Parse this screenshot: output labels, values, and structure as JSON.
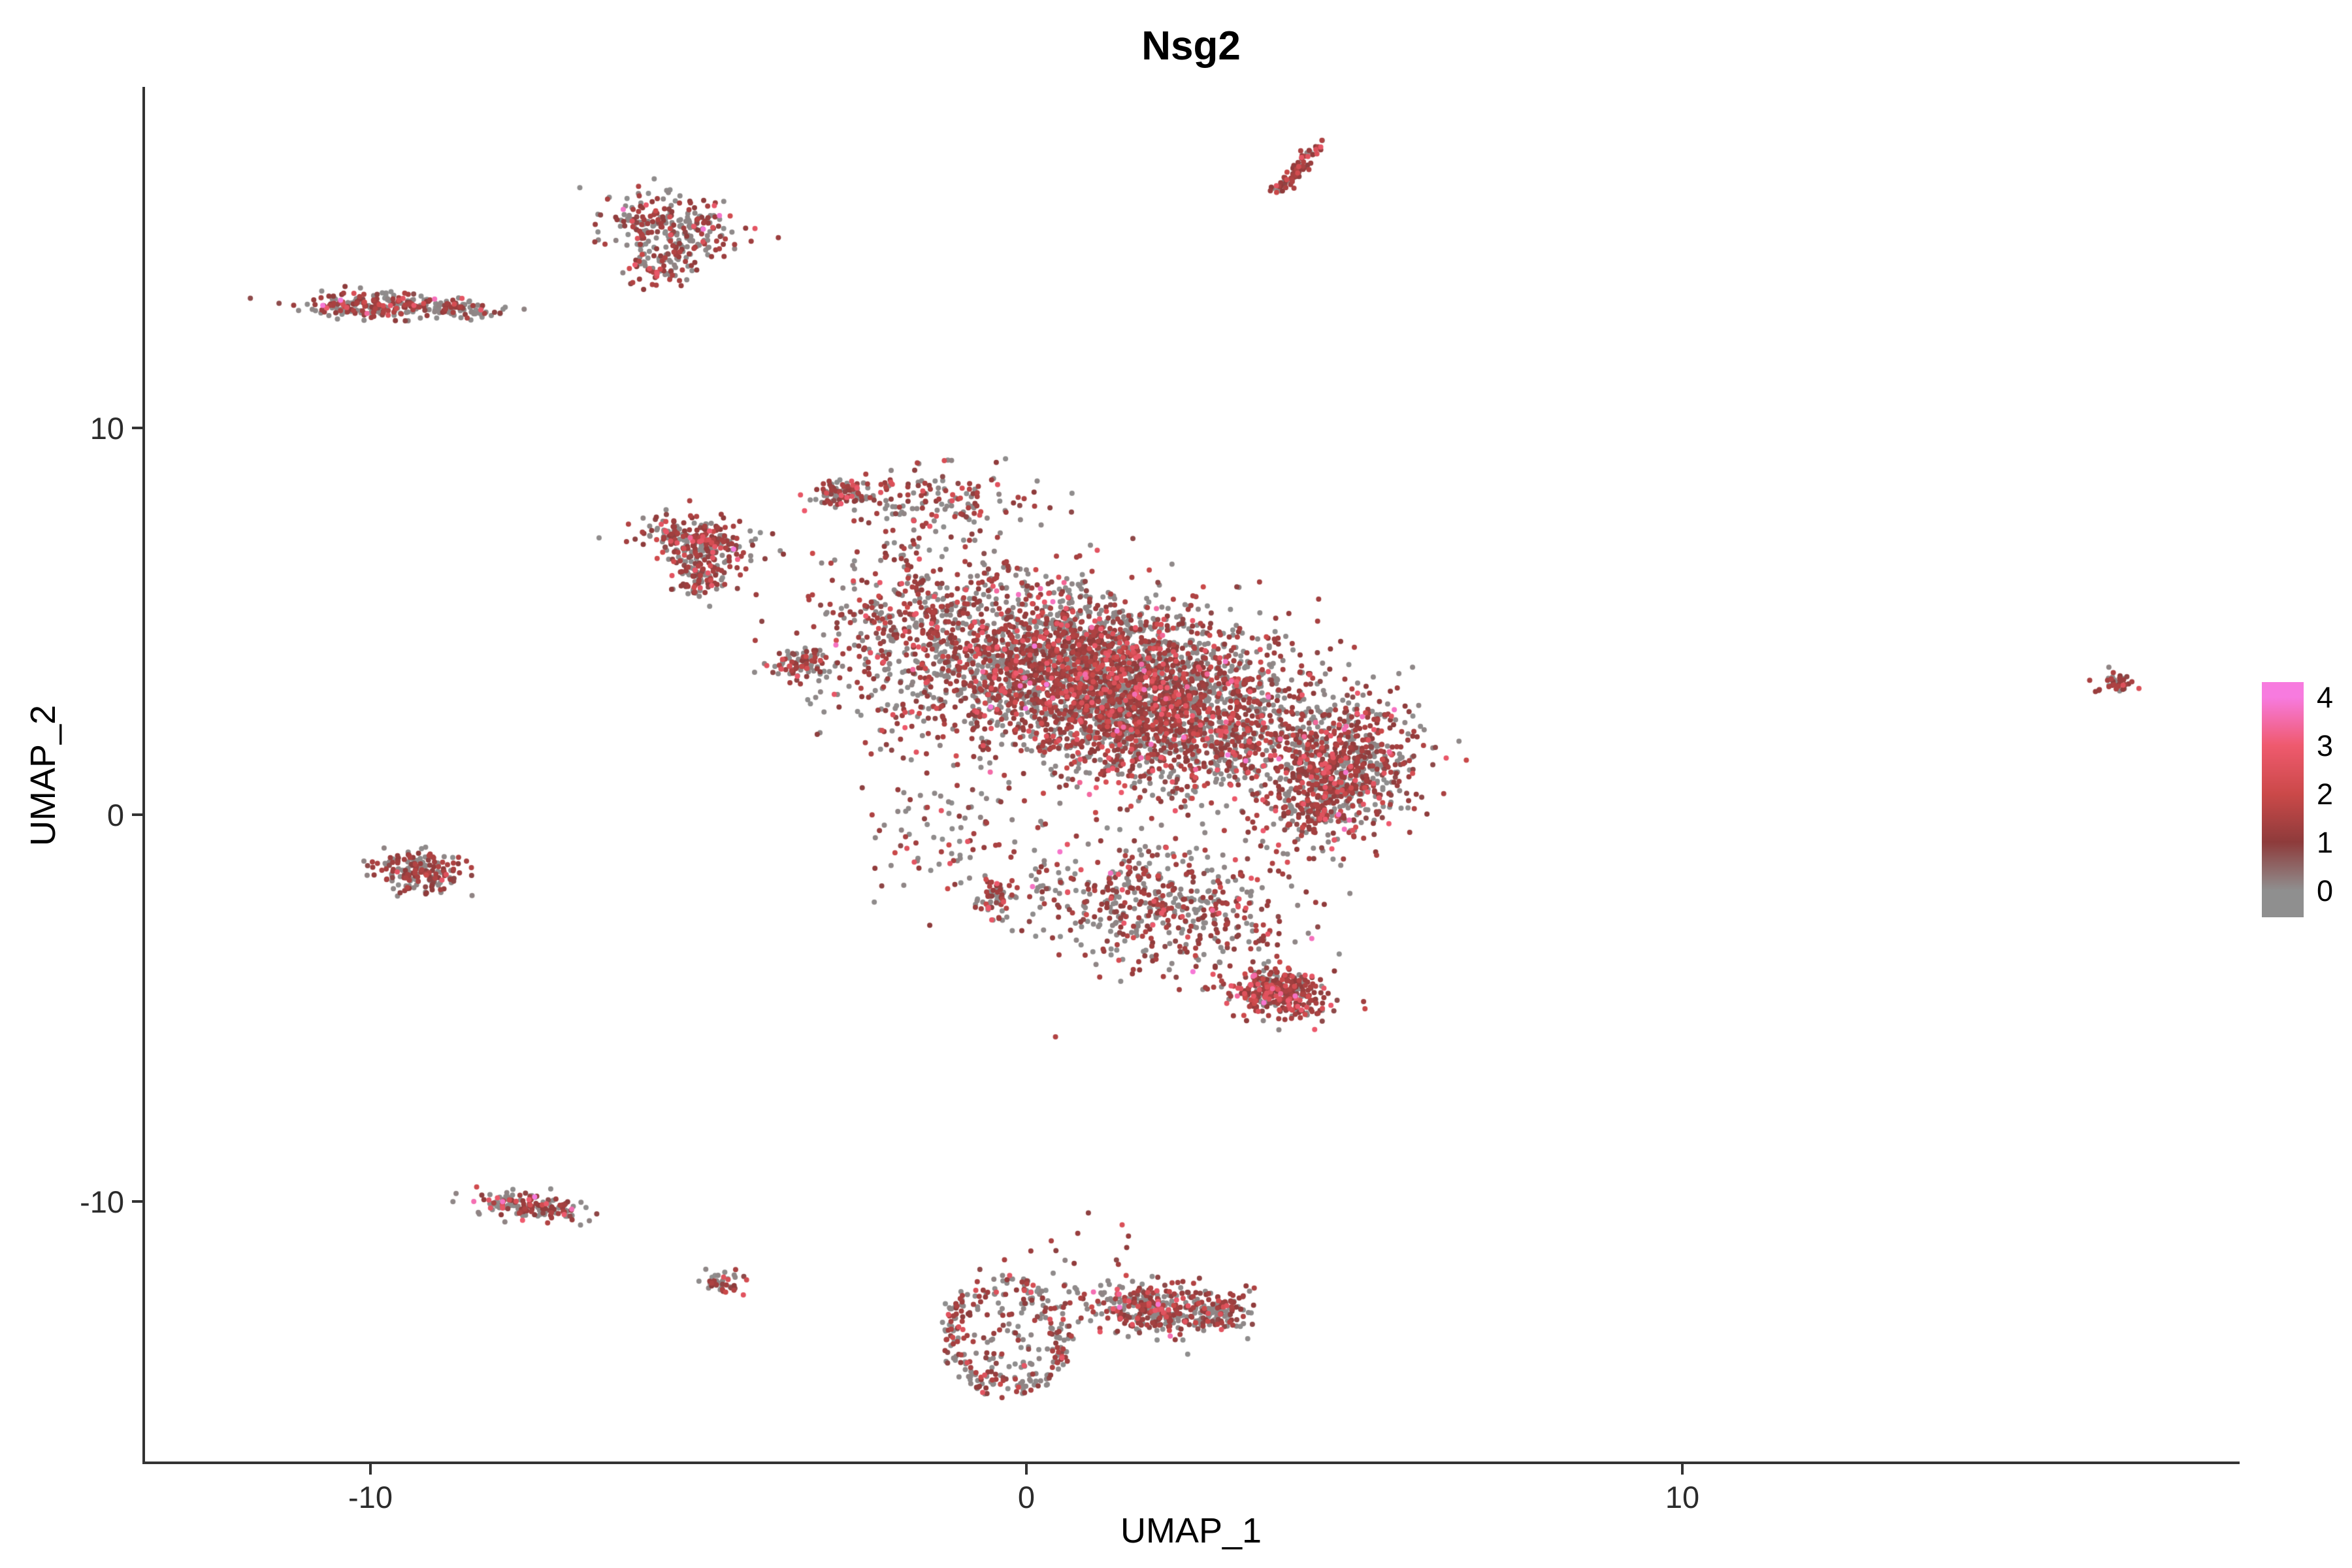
{
  "title": "Nsg2",
  "axes": {
    "x_label": "UMAP_1",
    "y_label": "UMAP_2",
    "x_ticks": [
      {
        "label": "-10",
        "value": -10
      },
      {
        "label": "0",
        "value": 0
      },
      {
        "label": "10",
        "value": 10
      }
    ],
    "y_ticks": [
      {
        "label": "10",
        "value": 10
      },
      {
        "label": "0",
        "value": 0
      },
      {
        "label": "-10",
        "value": -10
      }
    ]
  },
  "legend": {
    "labels": [
      "4",
      "3",
      "2",
      "1",
      "0"
    ]
  },
  "chart_data": {
    "type": "scatter",
    "title": "Nsg2",
    "xlabel": "UMAP_1",
    "ylabel": "UMAP_2",
    "xlim": [
      -13.44,
      18.46
    ],
    "ylim": [
      -16.72,
      18.78
    ],
    "grid": false,
    "legend_position": "right",
    "point_radius": 4,
    "seed": 42,
    "color_scale": {
      "values": [
        0,
        1,
        2,
        3,
        4
      ],
      "colors": [
        "#8F8F8F",
        "#8E3B3B",
        "#CB4949",
        "#EF5A6E",
        "#F77BDF"
      ]
    },
    "expr_bins": [
      [
        0,
        0.15
      ],
      [
        0.8,
        1.6
      ],
      [
        1.9,
        3.0
      ],
      [
        3.3,
        4.0
      ]
    ],
    "clusters": [
      {
        "name": "top-left-bar",
        "type": "gauss",
        "cx": -9.8,
        "cy": 13.15,
        "sx": 0.62,
        "sy": 0.17,
        "rot": -3,
        "n": 240,
        "expr": [
          0.52,
          0.4,
          0.07,
          0.01
        ]
      },
      {
        "name": "top-left-tail",
        "type": "gauss",
        "cx": -8.6,
        "cy": 13.05,
        "sx": 0.35,
        "sy": 0.12,
        "rot": 0,
        "n": 50,
        "expr": [
          0.7,
          0.28,
          0.02,
          0.0
        ]
      },
      {
        "name": "top-blob",
        "type": "gauss",
        "cx": -5.4,
        "cy": 15.2,
        "sx": 0.55,
        "sy": 0.42,
        "rot": -35,
        "n": 260,
        "expr": [
          0.5,
          0.42,
          0.07,
          0.01
        ]
      },
      {
        "name": "top-blob-tail",
        "type": "gauss",
        "cx": -5.6,
        "cy": 14.2,
        "sx": 0.28,
        "sy": 0.26,
        "rot": 0,
        "n": 70,
        "expr": [
          0.55,
          0.4,
          0.05,
          0.0
        ]
      },
      {
        "name": "top-streak",
        "type": "line",
        "x1": 3.85,
        "y1": 16.1,
        "x2": 4.45,
        "y2": 17.35,
        "w": 0.07,
        "n": 80,
        "expr": [
          0.2,
          0.68,
          0.12,
          0.0
        ]
      },
      {
        "name": "far-right-dot",
        "type": "gauss",
        "cx": 16.6,
        "cy": 3.4,
        "sx": 0.16,
        "sy": 0.14,
        "rot": 0,
        "n": 40,
        "expr": [
          0.3,
          0.6,
          0.1,
          0.0
        ]
      },
      {
        "name": "left-mid-blob",
        "type": "gauss",
        "cx": -9.25,
        "cy": -1.45,
        "sx": 0.32,
        "sy": 0.28,
        "rot": -15,
        "n": 180,
        "expr": [
          0.5,
          0.44,
          0.06,
          0.0
        ]
      },
      {
        "name": "left-bottom-bar",
        "type": "gauss",
        "cx": -7.6,
        "cy": -10.1,
        "sx": 0.4,
        "sy": 0.17,
        "rot": -8,
        "n": 150,
        "expr": [
          0.45,
          0.46,
          0.08,
          0.01
        ]
      },
      {
        "name": "tiny-bottom",
        "type": "gauss",
        "cx": -4.63,
        "cy": -12.1,
        "sx": 0.14,
        "sy": 0.17,
        "rot": 0,
        "n": 40,
        "expr": [
          0.35,
          0.58,
          0.07,
          0.0
        ]
      },
      {
        "name": "bottom-ring",
        "type": "ring",
        "cx": -0.29,
        "cy": -13.5,
        "rx": 1.0,
        "ry": 1.57,
        "r0": 0.68,
        "r1": 1.0,
        "fill": 0.15,
        "n": 310,
        "expr": [
          0.55,
          0.38,
          0.07,
          0.0
        ]
      },
      {
        "name": "bottom-blob",
        "type": "gauss",
        "cx": 1.97,
        "cy": -12.75,
        "sx": 0.6,
        "sy": 0.33,
        "rot": -8,
        "n": 380,
        "expr": [
          0.48,
          0.43,
          0.08,
          0.01
        ]
      },
      {
        "name": "bottom-blob-ext",
        "type": "gauss",
        "cx": 3.0,
        "cy": -12.85,
        "sx": 0.25,
        "sy": 0.2,
        "rot": 0,
        "n": 60,
        "expr": [
          0.45,
          0.45,
          0.1,
          0.0
        ]
      },
      {
        "name": "bottom-sparse",
        "type": "gauss",
        "cx": 0.9,
        "cy": -11.3,
        "sx": 0.8,
        "sy": 0.5,
        "rot": 0,
        "n": 14,
        "expr": [
          0.4,
          0.5,
          0.1,
          0.0
        ]
      },
      {
        "name": "arm-top",
        "type": "gauss",
        "cx": -5.05,
        "cy": 7.1,
        "sx": 0.42,
        "sy": 0.3,
        "rot": -20,
        "n": 230,
        "expr": [
          0.4,
          0.5,
          0.09,
          0.01
        ]
      },
      {
        "name": "arm-tip",
        "type": "gauss",
        "cx": -4.95,
        "cy": 6.3,
        "sx": 0.2,
        "sy": 0.38,
        "rot": 0,
        "n": 120,
        "expr": [
          0.4,
          0.5,
          0.1,
          0.0
        ]
      },
      {
        "name": "small-blob-b",
        "type": "gauss",
        "cx": -3.4,
        "cy": 3.9,
        "sx": 0.24,
        "sy": 0.2,
        "rot": 0,
        "n": 90,
        "expr": [
          0.45,
          0.45,
          0.1,
          0.0
        ]
      },
      {
        "name": "small-blob-c",
        "type": "gauss",
        "cx": -2.8,
        "cy": 8.3,
        "sx": 0.22,
        "sy": 0.22,
        "rot": 0,
        "n": 90,
        "expr": [
          0.45,
          0.47,
          0.08,
          0.0
        ]
      },
      {
        "name": "top-scatter",
        "type": "gauss",
        "cx": -1.3,
        "cy": 8.1,
        "sx": 0.7,
        "sy": 0.45,
        "rot": 0,
        "n": 140,
        "expr": [
          0.4,
          0.5,
          0.1,
          0.0
        ]
      },
      {
        "name": "mid-scatter",
        "type": "gauss",
        "cx": -1.9,
        "cy": 4.9,
        "sx": 0.55,
        "sy": 1.6,
        "rot": 0,
        "n": 240,
        "expr": [
          0.5,
          0.42,
          0.08,
          0.0
        ]
      },
      {
        "name": "main-core",
        "type": "gauss",
        "cx": 1.3,
        "cy": 3.3,
        "sx": 1.8,
        "sy": 1.05,
        "rot": -33,
        "n": 4300,
        "expr": [
          0.44,
          0.45,
          0.1,
          0.01
        ]
      },
      {
        "name": "right-lobe",
        "type": "gauss",
        "cx": 4.7,
        "cy": 1.0,
        "sx": 0.55,
        "sy": 0.95,
        "rot": -15,
        "n": 750,
        "expr": [
          0.35,
          0.52,
          0.12,
          0.01
        ]
      },
      {
        "name": "lower-arm",
        "type": "gauss",
        "cx": 2.1,
        "cy": -2.4,
        "sx": 1.05,
        "sy": 0.8,
        "rot": -20,
        "n": 560,
        "expr": [
          0.45,
          0.45,
          0.09,
          0.01
        ]
      },
      {
        "name": "bottom-tip",
        "type": "gauss",
        "cx": 3.85,
        "cy": -4.6,
        "sx": 0.38,
        "sy": 0.3,
        "rot": -25,
        "n": 330,
        "expr": [
          0.22,
          0.6,
          0.17,
          0.01
        ]
      },
      {
        "name": "left-lower-sparse",
        "type": "gauss",
        "cx": -1.2,
        "cy": -0.6,
        "sx": 0.55,
        "sy": 0.9,
        "rot": 0,
        "n": 90,
        "expr": [
          0.5,
          0.42,
          0.08,
          0.0
        ]
      },
      {
        "name": "offshoot",
        "type": "gauss",
        "cx": -0.5,
        "cy": -2.2,
        "sx": 0.16,
        "sy": 0.24,
        "rot": 0,
        "n": 55,
        "expr": [
          0.45,
          0.45,
          0.1,
          0.0
        ]
      }
    ],
    "highlight_points": [
      {
        "x": -10.45,
        "y": 13.3,
        "v": 4.0
      },
      {
        "x": -8.42,
        "y": -10.0,
        "v": 3.6
      },
      {
        "x": 2.4,
        "y": 2.0,
        "v": 3.8
      },
      {
        "x": 4.35,
        "y": -3.2,
        "v": 3.7
      },
      {
        "x": -0.55,
        "y": 1.1,
        "v": 3.5
      },
      {
        "x": 1.46,
        "y": -10.6,
        "v": 2.4
      },
      {
        "x": -4.4,
        "y": 6.6,
        "v": 3.2
      }
    ]
  }
}
